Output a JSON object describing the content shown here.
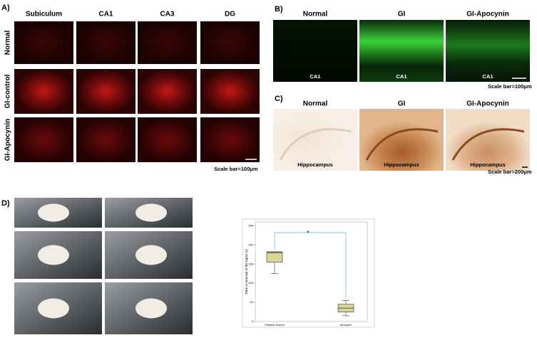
{
  "panels": {
    "A": {
      "label": "A)",
      "columns": [
        "Subiculum",
        "CA1",
        "CA3",
        "DG"
      ],
      "rows": [
        "Normal",
        "GI-control",
        "GI-Apocynin"
      ],
      "scale_bar": "Scale bar=100μm"
    },
    "B": {
      "label": "B)",
      "columns": [
        "Normal",
        "GI",
        "GI-Apocynin"
      ],
      "image_labels": [
        "CA1",
        "CA1",
        "CA1"
      ],
      "scale_bar": "Scale bar=100μm"
    },
    "C": {
      "label": "C)",
      "columns": [
        "Normal",
        "GI",
        "GI-Apocynin"
      ],
      "image_labels": [
        "Hippocampus",
        "Hippocampus",
        "Hippocampus"
      ],
      "scale_bar": "Scale bar=200μm"
    },
    "D": {
      "label": "D)"
    }
  },
  "chart_data": {
    "type": "box",
    "y_label": "Time to removal of the tapes (s)",
    "annotation": "*",
    "categories": [
      "Placebo control",
      "Apocynin"
    ],
    "min": [
      125,
      15
    ],
    "q1": [
      155,
      25
    ],
    "median": [
      180,
      35
    ],
    "q3": [
      182,
      45
    ],
    "max": [
      182,
      55
    ],
    "color": "#d8d49a",
    "ylim": [
      0,
      260
    ],
    "yticks": [
      0,
      50,
      100,
      150,
      200,
      250
    ]
  }
}
